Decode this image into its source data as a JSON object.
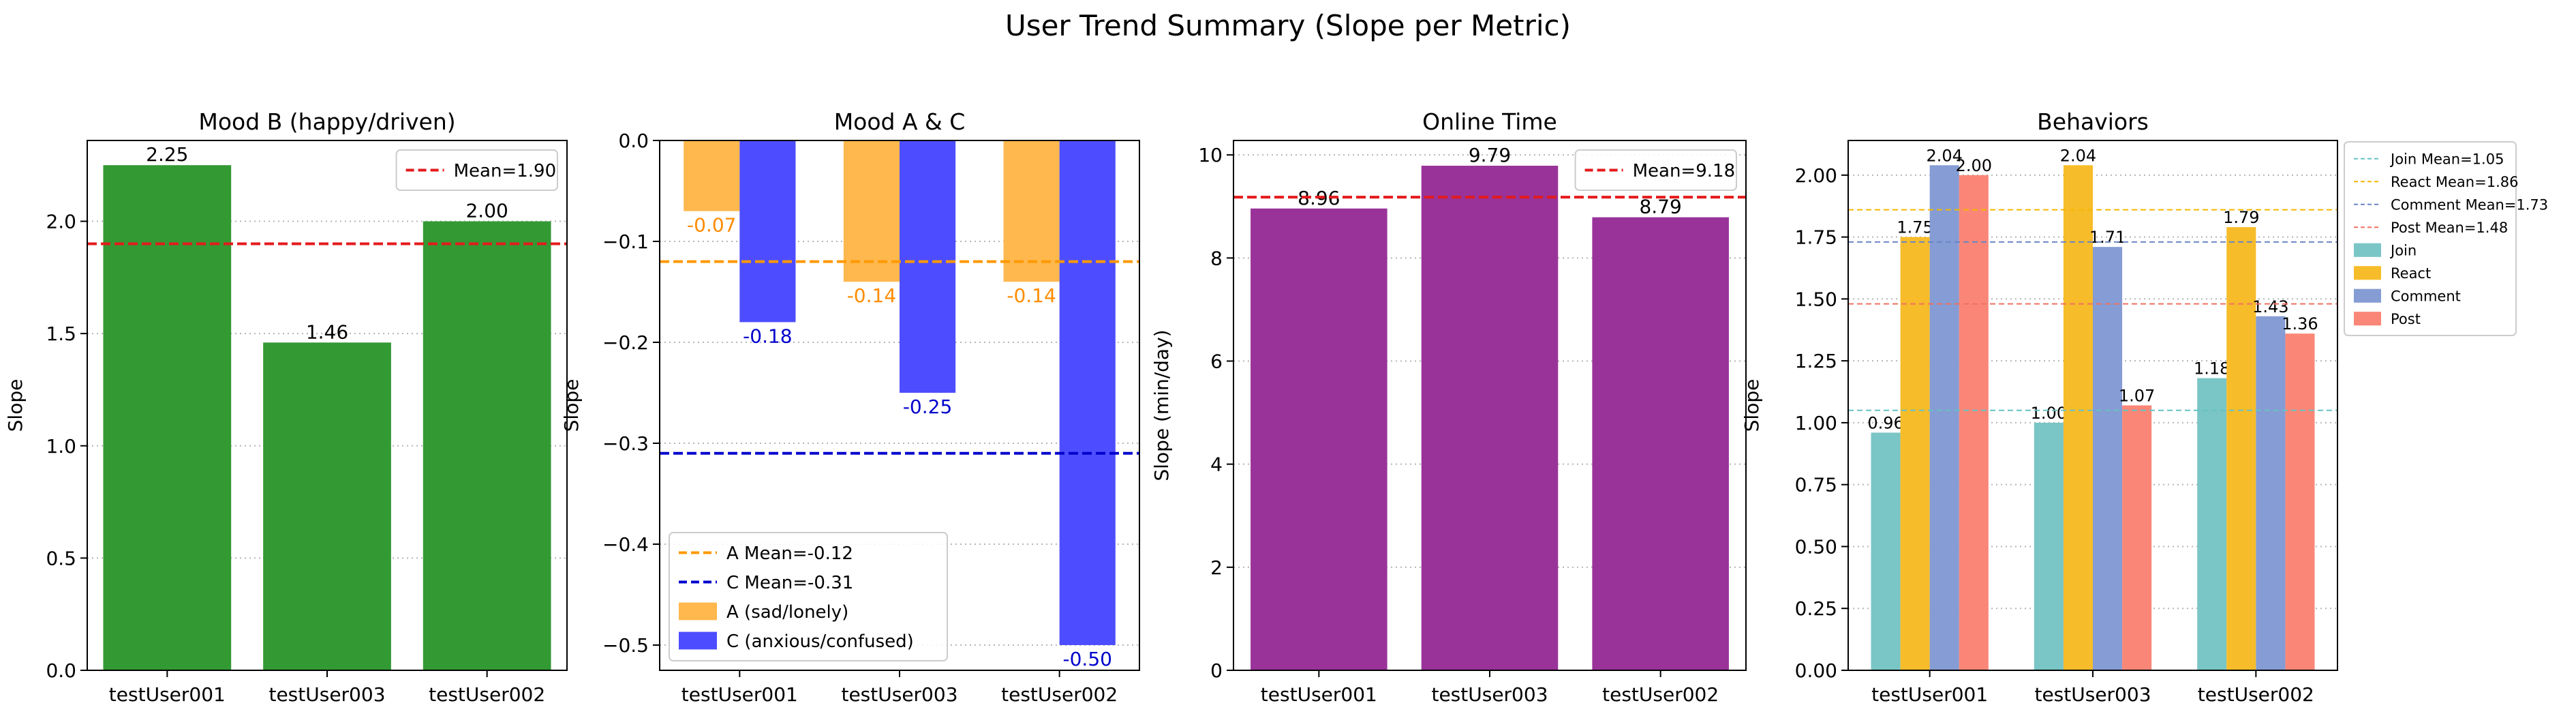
{
  "suptitle": "User Trend Summary (Slope per Metric)",
  "chart_data": [
    {
      "type": "bar",
      "title": "Mood B (happy/driven)",
      "xlabel": "",
      "ylabel": "Slope",
      "ylim": [
        0,
        2.36
      ],
      "yticks": [
        "0.0",
        "0.5",
        "1.0",
        "1.5",
        "2.0"
      ],
      "categories": [
        "testUser001",
        "testUser003",
        "testUser002"
      ],
      "series": [
        {
          "values": [
            2.25,
            1.46,
            2.0
          ],
          "labels": [
            "2.25",
            "1.46",
            "2.00"
          ],
          "color": "#339933"
        }
      ],
      "mean_lines": [
        {
          "label": "Mean=1.90",
          "value": 1.9,
          "color": "#e41a1c"
        }
      ],
      "legend_position": "top-right",
      "grid": "y-dotted"
    },
    {
      "type": "bar",
      "title": "Mood A & C",
      "xlabel": "",
      "ylabel": "Slope",
      "ylim": [
        -0.525,
        0
      ],
      "yticks": [
        "0.0",
        "−0.1",
        "−0.2",
        "−0.3",
        "−0.4",
        "−0.5"
      ],
      "categories": [
        "testUser001",
        "testUser003",
        "testUser002"
      ],
      "series": [
        {
          "name": "A (sad/lonely)",
          "values": [
            -0.07,
            -0.14,
            -0.14
          ],
          "labels": [
            "-0.07",
            "-0.14",
            "-0.14"
          ],
          "color": "#ffb84d",
          "label_color": "#ff8c00"
        },
        {
          "name": "C (anxious/confused)",
          "values": [
            -0.18,
            -0.25,
            -0.5
          ],
          "labels": [
            "-0.18",
            "-0.25",
            "-0.50"
          ],
          "color": "#4d4dff",
          "label_color": "#0000cc"
        }
      ],
      "mean_lines": [
        {
          "label": "A Mean=-0.12",
          "value": -0.12,
          "color": "#ff9900"
        },
        {
          "label": "C Mean=-0.31",
          "value": -0.31,
          "color": "#0000cc"
        }
      ],
      "legend_position": "bottom-left",
      "grid": "y-dotted"
    },
    {
      "type": "bar",
      "title": "Online Time",
      "xlabel": "",
      "ylabel": "Slope (min/day)",
      "ylim": [
        0,
        10.28
      ],
      "yticks": [
        "0",
        "2",
        "4",
        "6",
        "8",
        "10"
      ],
      "categories": [
        "testUser001",
        "testUser003",
        "testUser002"
      ],
      "series": [
        {
          "values": [
            8.96,
            9.79,
            8.79
          ],
          "labels": [
            "8.96",
            "9.79",
            "8.79"
          ],
          "color": "#993399"
        }
      ],
      "mean_lines": [
        {
          "label": "Mean=9.18",
          "value": 9.18,
          "color": "#e41a1c"
        }
      ],
      "legend_position": "top-right",
      "grid": "y-dotted"
    },
    {
      "type": "bar",
      "title": "Behaviors",
      "xlabel": "",
      "ylabel": "Slope",
      "ylim": [
        0,
        2.14
      ],
      "yticks": [
        "0.00",
        "0.25",
        "0.50",
        "0.75",
        "1.00",
        "1.25",
        "1.50",
        "1.75",
        "2.00"
      ],
      "categories": [
        "testUser001",
        "testUser003",
        "testUser002"
      ],
      "series": [
        {
          "name": "Join",
          "values": [
            0.96,
            1.0,
            1.18
          ],
          "labels": [
            "0.96",
            "1.00",
            "1.18"
          ],
          "color": "#7ac5c5"
        },
        {
          "name": "React",
          "values": [
            1.75,
            2.04,
            1.79
          ],
          "labels": [
            "1.75",
            "2.04",
            "1.79"
          ],
          "color": "#f7bc2a"
        },
        {
          "name": "Comment",
          "values": [
            2.04,
            1.71,
            1.43
          ],
          "labels": [
            "2.04",
            "1.71",
            "1.43"
          ],
          "color": "#859cd4"
        },
        {
          "name": "Post",
          "values": [
            2.0,
            1.07,
            1.36
          ],
          "labels": [
            "2.00",
            "1.07",
            "1.36"
          ],
          "color": "#fa8677"
        }
      ],
      "mean_lines": [
        {
          "label": "Join Mean=1.05",
          "value": 1.05,
          "color": "#66c2c2"
        },
        {
          "label": "React Mean=1.86",
          "value": 1.86,
          "color": "#f5b700"
        },
        {
          "label": "Comment Mean=1.73",
          "value": 1.73,
          "color": "#6a85c8"
        },
        {
          "label": "Post Mean=1.48",
          "value": 1.48,
          "color": "#f07060"
        }
      ],
      "legend_position": "outside-right",
      "grid": "y-dotted"
    }
  ]
}
